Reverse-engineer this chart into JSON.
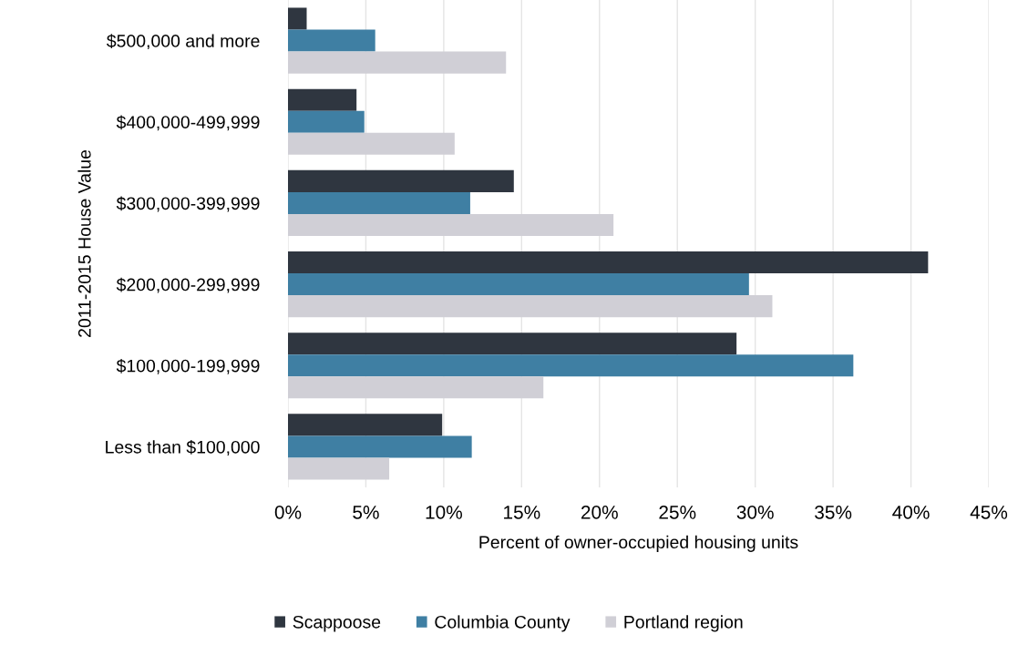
{
  "chart_data": {
    "type": "bar",
    "orientation": "horizontal",
    "xlabel": "Percent of owner-occupied housing units",
    "ylabel": "2011-2015 House Value",
    "categories": [
      "$500,000 and more",
      "$400,000-499,999",
      "$300,000-399,999",
      "$200,000-299,999",
      "$100,000-199,999",
      "Less than $100,000"
    ],
    "series": [
      {
        "name": "Scappoose",
        "color": "#2f3640",
        "values": [
          1.2,
          4.4,
          14.5,
          41.1,
          28.8,
          9.9
        ]
      },
      {
        "name": "Columbia County",
        "color": "#3f7fa3",
        "values": [
          5.6,
          4.9,
          11.7,
          29.6,
          36.3,
          11.8
        ]
      },
      {
        "name": "Portland region",
        "color": "#d0cfd6",
        "values": [
          14.0,
          10.7,
          20.9,
          31.1,
          16.4,
          6.5
        ]
      }
    ],
    "xlim": [
      0,
      45
    ],
    "xticks": [
      {
        "value": 0,
        "label": "0%"
      },
      {
        "value": 5,
        "label": "5%"
      },
      {
        "value": 10,
        "label": "10%"
      },
      {
        "value": 15,
        "label": "15%"
      },
      {
        "value": 20,
        "label": "20%"
      },
      {
        "value": 25,
        "label": "25%"
      },
      {
        "value": 30,
        "label": "30%"
      },
      {
        "value": 35,
        "label": "35%"
      },
      {
        "value": 40,
        "label": "40%"
      },
      {
        "value": 45,
        "label": "45%"
      }
    ],
    "grid": "x",
    "legend": "bottom"
  }
}
